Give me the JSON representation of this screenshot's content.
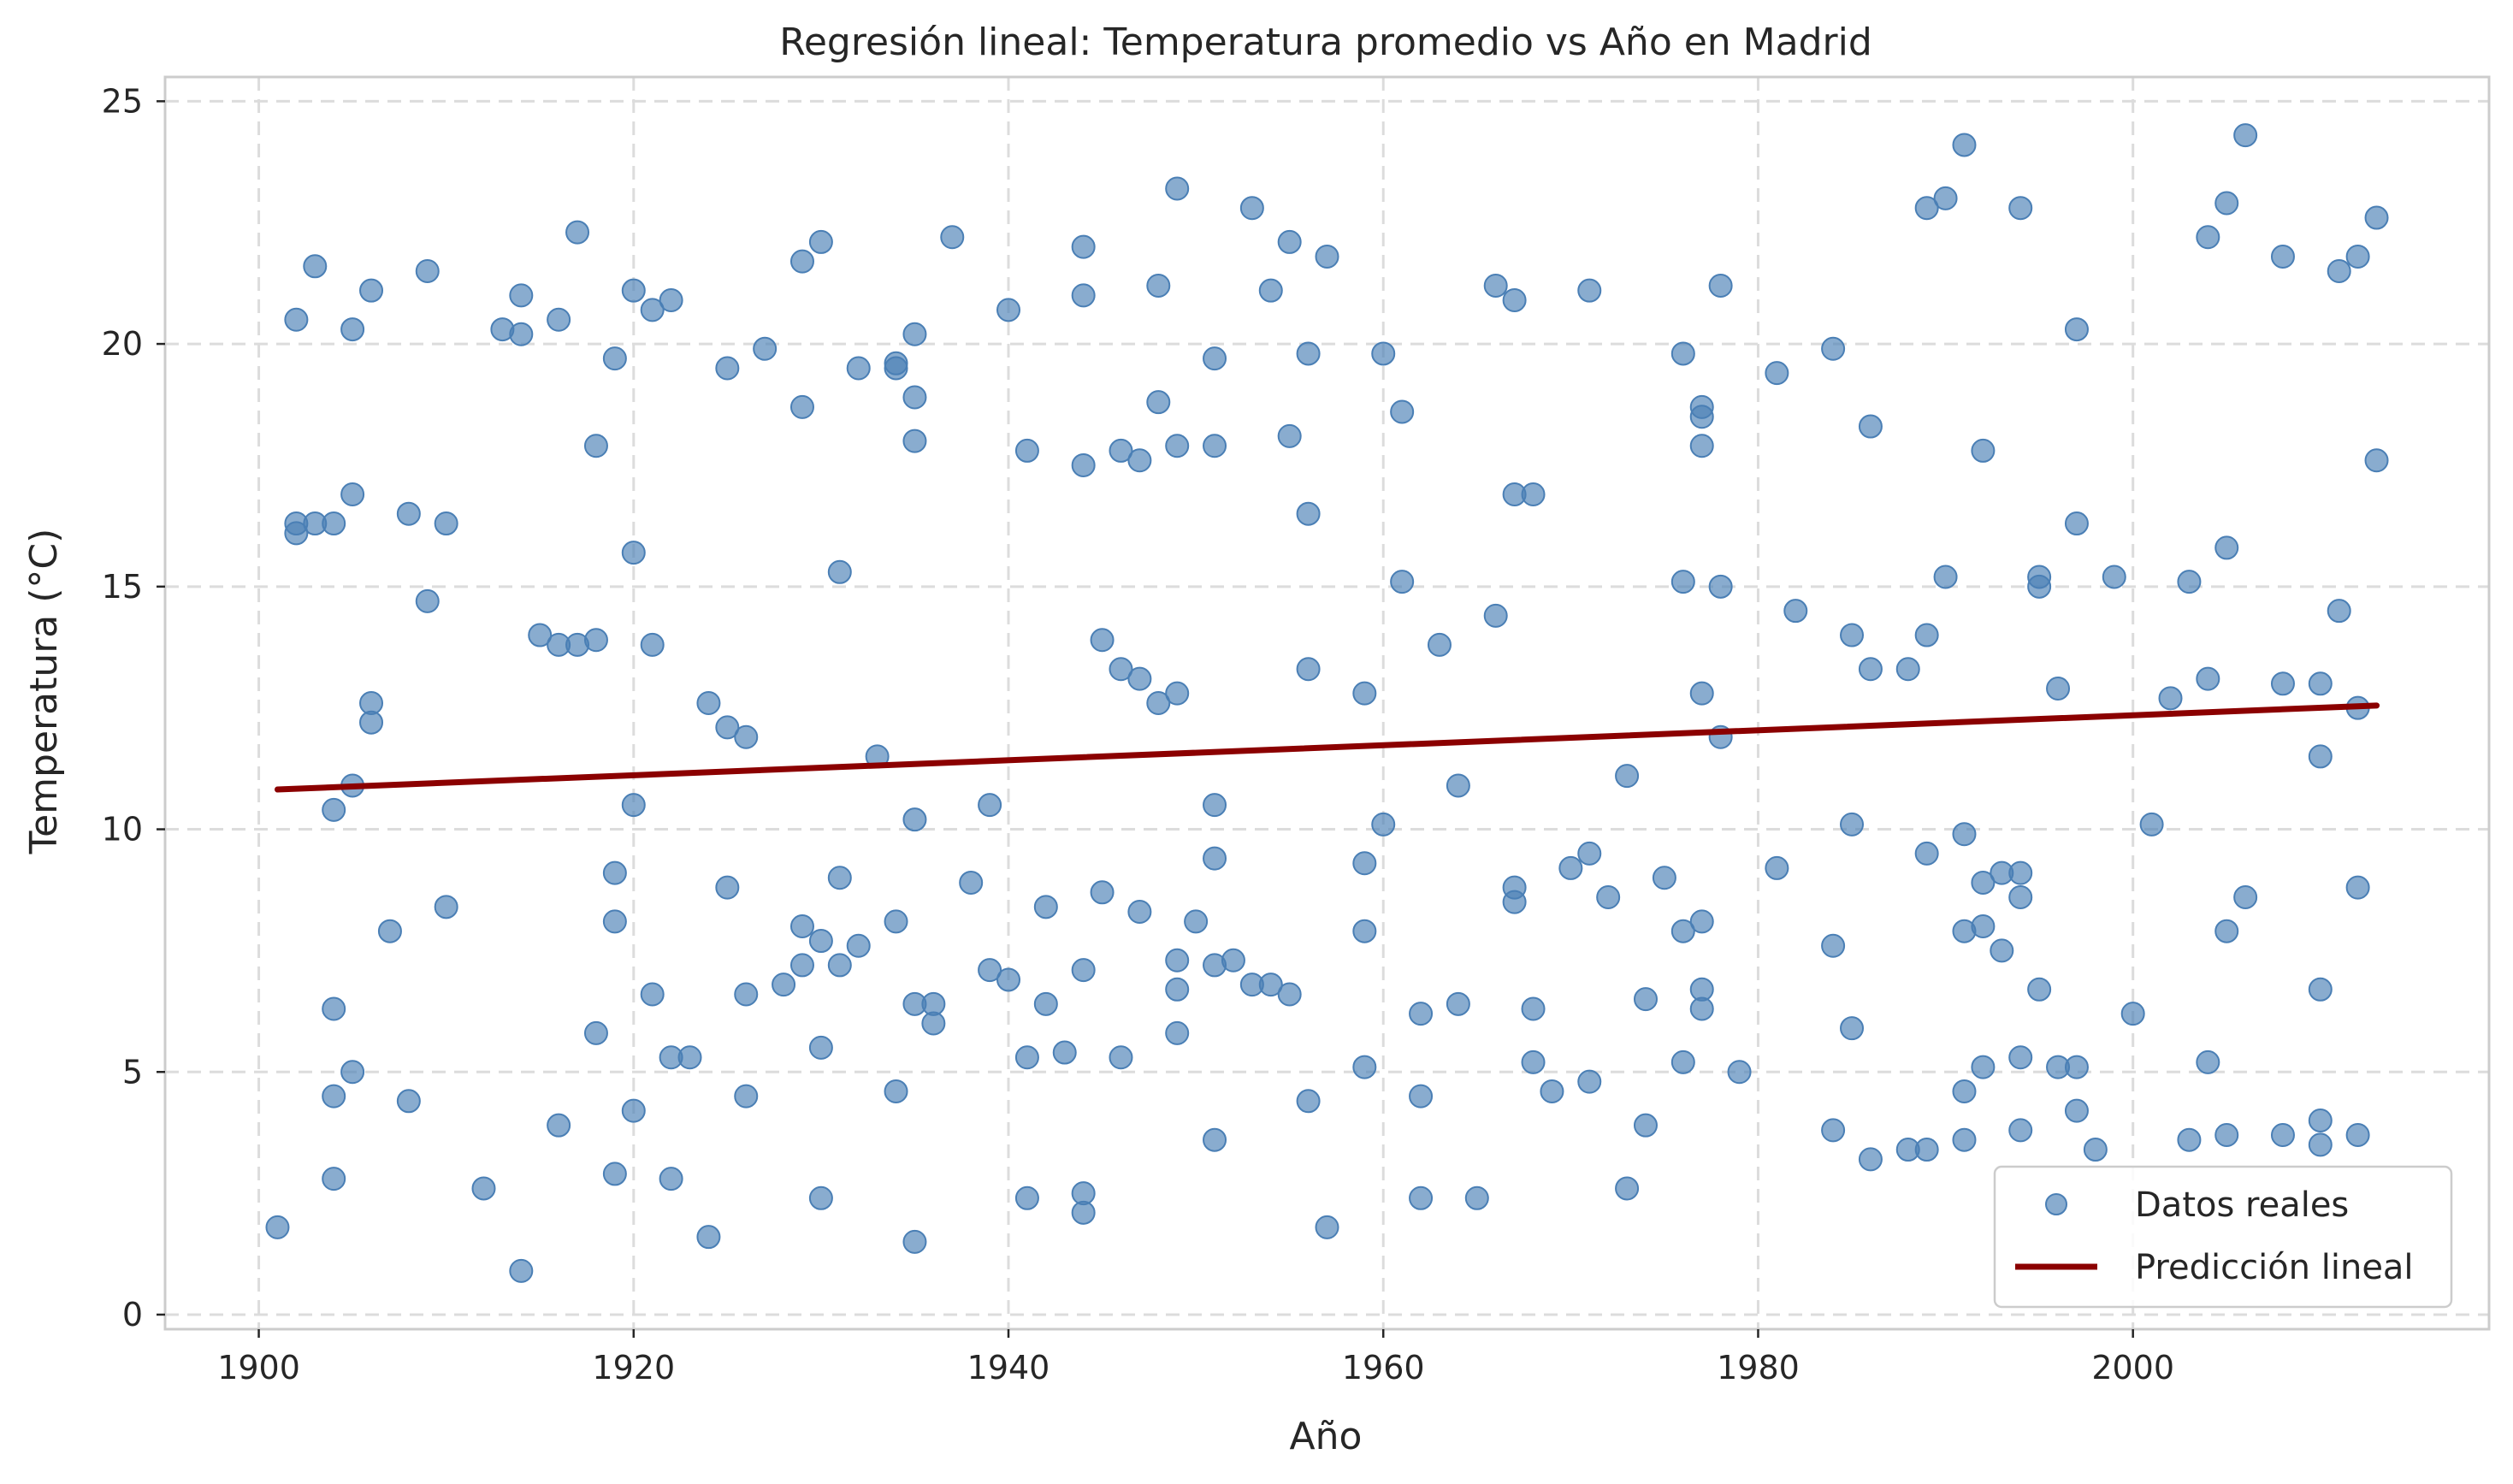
{
  "chart_data": {
    "type": "scatter",
    "title": "Regresión lineal: Temperatura promedio vs Año en Madrid",
    "xlabel": "Año",
    "ylabel": "Temperatura (°C)",
    "xlim": [
      1895,
      2019
    ],
    "ylim": [
      -0.3,
      25.5
    ],
    "xticks": [
      1900,
      1920,
      1940,
      1960,
      1980,
      2000
    ],
    "yticks": [
      0,
      5,
      10,
      15,
      20,
      25
    ],
    "grid": true,
    "legend_position": "lower-right",
    "colors": {
      "points": "#4a7fb5",
      "line": "#8b0000"
    },
    "series": [
      {
        "name": "Datos reales",
        "kind": "scatter",
        "points": [
          [
            1901,
            1.8
          ],
          [
            1902,
            20.5
          ],
          [
            1902,
            16.3
          ],
          [
            1902,
            16.1
          ],
          [
            1903,
            21.6
          ],
          [
            1903,
            16.3
          ],
          [
            1904,
            16.3
          ],
          [
            1904,
            10.4
          ],
          [
            1904,
            6.3
          ],
          [
            1904,
            4.5
          ],
          [
            1904,
            2.8
          ],
          [
            1905,
            20.3
          ],
          [
            1905,
            16.9
          ],
          [
            1905,
            10.9
          ],
          [
            1905,
            5.0
          ],
          [
            1906,
            21.1
          ],
          [
            1906,
            12.6
          ],
          [
            1906,
            12.2
          ],
          [
            1907,
            7.9
          ],
          [
            1908,
            16.5
          ],
          [
            1908,
            4.4
          ],
          [
            1909,
            21.5
          ],
          [
            1909,
            14.7
          ],
          [
            1910,
            16.3
          ],
          [
            1910,
            8.4
          ],
          [
            1912,
            2.6
          ],
          [
            1913,
            20.3
          ],
          [
            1914,
            21.0
          ],
          [
            1914,
            20.2
          ],
          [
            1914,
            0.9
          ],
          [
            1915,
            14.0
          ],
          [
            1916,
            20.5
          ],
          [
            1916,
            13.8
          ],
          [
            1916,
            3.9
          ],
          [
            1917,
            22.3
          ],
          [
            1917,
            13.8
          ],
          [
            1918,
            17.9
          ],
          [
            1918,
            13.9
          ],
          [
            1918,
            5.8
          ],
          [
            1919,
            19.7
          ],
          [
            1919,
            9.1
          ],
          [
            1919,
            8.1
          ],
          [
            1919,
            2.9
          ],
          [
            1920,
            21.1
          ],
          [
            1920,
            15.7
          ],
          [
            1920,
            10.5
          ],
          [
            1920,
            4.2
          ],
          [
            1921,
            20.7
          ],
          [
            1921,
            13.8
          ],
          [
            1921,
            6.6
          ],
          [
            1922,
            20.9
          ],
          [
            1922,
            5.3
          ],
          [
            1922,
            2.8
          ],
          [
            1923,
            5.3
          ],
          [
            1924,
            12.6
          ],
          [
            1924,
            1.6
          ],
          [
            1925,
            19.5
          ],
          [
            1925,
            12.1
          ],
          [
            1925,
            8.8
          ],
          [
            1926,
            11.9
          ],
          [
            1926,
            6.6
          ],
          [
            1926,
            4.5
          ],
          [
            1927,
            19.9
          ],
          [
            1928,
            6.8
          ],
          [
            1929,
            21.7
          ],
          [
            1929,
            18.7
          ],
          [
            1929,
            8.0
          ],
          [
            1929,
            7.2
          ],
          [
            1930,
            22.1
          ],
          [
            1930,
            7.7
          ],
          [
            1930,
            5.5
          ],
          [
            1930,
            2.4
          ],
          [
            1931,
            15.3
          ],
          [
            1931,
            9.0
          ],
          [
            1931,
            7.2
          ],
          [
            1932,
            19.5
          ],
          [
            1932,
            7.6
          ],
          [
            1933,
            11.5
          ],
          [
            1934,
            19.6
          ],
          [
            1934,
            19.5
          ],
          [
            1934,
            8.1
          ],
          [
            1934,
            4.6
          ],
          [
            1935,
            20.2
          ],
          [
            1935,
            18.9
          ],
          [
            1935,
            18.0
          ],
          [
            1935,
            10.2
          ],
          [
            1935,
            6.4
          ],
          [
            1935,
            1.5
          ],
          [
            1936,
            6.4
          ],
          [
            1936,
            6.0
          ],
          [
            1937,
            22.2
          ],
          [
            1938,
            8.9
          ],
          [
            1939,
            10.5
          ],
          [
            1939,
            7.1
          ],
          [
            1940,
            20.7
          ],
          [
            1940,
            6.9
          ],
          [
            1941,
            17.8
          ],
          [
            1941,
            5.3
          ],
          [
            1941,
            2.4
          ],
          [
            1942,
            8.4
          ],
          [
            1942,
            6.4
          ],
          [
            1943,
            5.4
          ],
          [
            1944,
            22.0
          ],
          [
            1944,
            21.0
          ],
          [
            1944,
            17.5
          ],
          [
            1944,
            7.1
          ],
          [
            1944,
            2.5
          ],
          [
            1944,
            2.1
          ],
          [
            1945,
            13.9
          ],
          [
            1945,
            8.7
          ],
          [
            1946,
            17.8
          ],
          [
            1946,
            13.3
          ],
          [
            1946,
            5.3
          ],
          [
            1947,
            17.6
          ],
          [
            1947,
            13.1
          ],
          [
            1947,
            8.3
          ],
          [
            1948,
            21.2
          ],
          [
            1948,
            18.8
          ],
          [
            1948,
            12.6
          ],
          [
            1949,
            23.2
          ],
          [
            1949,
            17.9
          ],
          [
            1949,
            12.8
          ],
          [
            1949,
            7.3
          ],
          [
            1949,
            6.7
          ],
          [
            1949,
            5.8
          ],
          [
            1950,
            8.1
          ],
          [
            1951,
            19.7
          ],
          [
            1951,
            17.9
          ],
          [
            1951,
            10.5
          ],
          [
            1951,
            9.4
          ],
          [
            1951,
            7.2
          ],
          [
            1951,
            3.6
          ],
          [
            1952,
            7.3
          ],
          [
            1953,
            22.8
          ],
          [
            1953,
            6.8
          ],
          [
            1954,
            21.1
          ],
          [
            1954,
            6.8
          ],
          [
            1955,
            22.1
          ],
          [
            1955,
            18.1
          ],
          [
            1955,
            6.6
          ],
          [
            1956,
            19.8
          ],
          [
            1956,
            16.5
          ],
          [
            1956,
            13.3
          ],
          [
            1956,
            4.4
          ],
          [
            1957,
            21.8
          ],
          [
            1957,
            1.8
          ],
          [
            1959,
            12.8
          ],
          [
            1959,
            9.3
          ],
          [
            1959,
            7.9
          ],
          [
            1959,
            5.1
          ],
          [
            1960,
            19.8
          ],
          [
            1960,
            10.1
          ],
          [
            1961,
            18.6
          ],
          [
            1961,
            15.1
          ],
          [
            1962,
            6.2
          ],
          [
            1962,
            4.5
          ],
          [
            1962,
            2.4
          ],
          [
            1963,
            13.8
          ],
          [
            1964,
            10.9
          ],
          [
            1964,
            6.4
          ],
          [
            1965,
            2.4
          ],
          [
            1966,
            21.2
          ],
          [
            1966,
            14.4
          ],
          [
            1967,
            20.9
          ],
          [
            1967,
            16.9
          ],
          [
            1967,
            8.8
          ],
          [
            1967,
            8.5
          ],
          [
            1968,
            16.9
          ],
          [
            1968,
            6.3
          ],
          [
            1968,
            5.2
          ],
          [
            1969,
            4.6
          ],
          [
            1970,
            9.2
          ],
          [
            1971,
            21.1
          ],
          [
            1971,
            9.5
          ],
          [
            1971,
            4.8
          ],
          [
            1972,
            8.6
          ],
          [
            1973,
            11.1
          ],
          [
            1973,
            2.6
          ],
          [
            1974,
            6.5
          ],
          [
            1974,
            3.9
          ],
          [
            1975,
            9.0
          ],
          [
            1976,
            19.8
          ],
          [
            1976,
            15.1
          ],
          [
            1976,
            7.9
          ],
          [
            1976,
            5.2
          ],
          [
            1977,
            18.7
          ],
          [
            1977,
            18.5
          ],
          [
            1977,
            17.9
          ],
          [
            1977,
            12.8
          ],
          [
            1977,
            8.1
          ],
          [
            1977,
            6.7
          ],
          [
            1977,
            6.3
          ],
          [
            1978,
            21.2
          ],
          [
            1978,
            15.0
          ],
          [
            1978,
            11.9
          ],
          [
            1979,
            5.0
          ],
          [
            1981,
            19.4
          ],
          [
            1981,
            9.2
          ],
          [
            1982,
            14.5
          ],
          [
            1984,
            19.9
          ],
          [
            1984,
            7.6
          ],
          [
            1984,
            3.8
          ],
          [
            1985,
            14.0
          ],
          [
            1985,
            10.1
          ],
          [
            1985,
            5.9
          ],
          [
            1986,
            18.3
          ],
          [
            1986,
            13.3
          ],
          [
            1986,
            3.2
          ],
          [
            1988,
            13.3
          ],
          [
            1988,
            3.4
          ],
          [
            1989,
            22.8
          ],
          [
            1989,
            14.0
          ],
          [
            1989,
            9.5
          ],
          [
            1989,
            3.4
          ],
          [
            1990,
            23.0
          ],
          [
            1990,
            15.2
          ],
          [
            1991,
            24.1
          ],
          [
            1991,
            9.9
          ],
          [
            1991,
            7.9
          ],
          [
            1991,
            4.6
          ],
          [
            1991,
            3.6
          ],
          [
            1992,
            17.8
          ],
          [
            1992,
            8.9
          ],
          [
            1992,
            8.0
          ],
          [
            1992,
            5.1
          ],
          [
            1993,
            9.1
          ],
          [
            1993,
            7.5
          ],
          [
            1994,
            22.8
          ],
          [
            1994,
            9.1
          ],
          [
            1994,
            8.6
          ],
          [
            1994,
            5.3
          ],
          [
            1994,
            3.8
          ],
          [
            1995,
            15.2
          ],
          [
            1995,
            15.0
          ],
          [
            1995,
            6.7
          ],
          [
            1996,
            12.9
          ],
          [
            1996,
            5.1
          ],
          [
            1997,
            20.3
          ],
          [
            1997,
            16.3
          ],
          [
            1997,
            5.1
          ],
          [
            1997,
            4.2
          ],
          [
            1998,
            3.4
          ],
          [
            1999,
            15.2
          ],
          [
            2000,
            6.2
          ],
          [
            2001,
            10.1
          ],
          [
            2002,
            12.7
          ],
          [
            2003,
            15.1
          ],
          [
            2003,
            3.6
          ],
          [
            2004,
            22.2
          ],
          [
            2004,
            13.1
          ],
          [
            2004,
            5.2
          ],
          [
            2005,
            22.9
          ],
          [
            2005,
            15.8
          ],
          [
            2005,
            7.9
          ],
          [
            2005,
            3.7
          ],
          [
            2006,
            24.3
          ],
          [
            2006,
            8.6
          ],
          [
            2008,
            21.8
          ],
          [
            2008,
            13.0
          ],
          [
            2008,
            3.7
          ],
          [
            2010,
            13.0
          ],
          [
            2010,
            11.5
          ],
          [
            2010,
            6.7
          ],
          [
            2010,
            4.0
          ],
          [
            2010,
            3.5
          ],
          [
            2011,
            21.5
          ],
          [
            2011,
            14.5
          ],
          [
            2012,
            21.8
          ],
          [
            2012,
            12.5
          ],
          [
            2012,
            8.8
          ],
          [
            2012,
            3.7
          ],
          [
            2013,
            22.6
          ],
          [
            2013,
            17.6
          ]
        ]
      },
      {
        "name": "Predicción lineal",
        "kind": "line",
        "points": [
          [
            1901,
            10.82
          ],
          [
            2013,
            12.55
          ]
        ]
      }
    ]
  }
}
